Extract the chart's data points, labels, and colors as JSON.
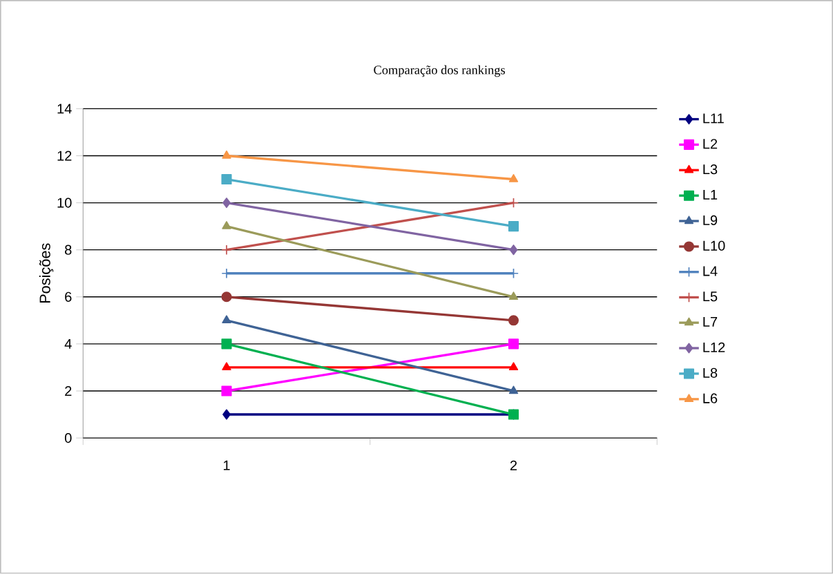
{
  "chart_data": {
    "type": "line",
    "title": "Comparação dos rankings",
    "ylabel": "Posições",
    "categories": [
      "1",
      "2"
    ],
    "ylim": [
      0,
      14
    ],
    "yticks": [
      0,
      2,
      4,
      6,
      8,
      10,
      12,
      14
    ],
    "grid": "y",
    "legend": "right",
    "series": [
      {
        "name": "L11",
        "color": "#000080",
        "marker": "diamond",
        "values": [
          1,
          1
        ]
      },
      {
        "name": "L2",
        "color": "#ff00ff",
        "marker": "square",
        "values": [
          2,
          4
        ]
      },
      {
        "name": "L3",
        "color": "#ff0000",
        "marker": "triangle",
        "values": [
          3,
          3
        ]
      },
      {
        "name": "L1",
        "color": "#00b050",
        "marker": "square",
        "values": [
          4,
          1
        ]
      },
      {
        "name": "L9",
        "color": "#3f6395",
        "marker": "triangle",
        "values": [
          5,
          2
        ]
      },
      {
        "name": "L10",
        "color": "#953735",
        "marker": "circle",
        "values": [
          6,
          5
        ]
      },
      {
        "name": "L4",
        "color": "#4f81bd",
        "marker": "cross",
        "values": [
          7,
          7
        ]
      },
      {
        "name": "L5",
        "color": "#c0504d",
        "marker": "cross",
        "values": [
          8,
          10
        ]
      },
      {
        "name": "L7",
        "color": "#9b9b5a",
        "marker": "triangle",
        "values": [
          9,
          6
        ]
      },
      {
        "name": "L12",
        "color": "#8064a2",
        "marker": "diamond",
        "values": [
          10,
          8
        ]
      },
      {
        "name": "L8",
        "color": "#4bacc6",
        "marker": "square",
        "values": [
          11,
          9
        ]
      },
      {
        "name": "L6",
        "color": "#f79646",
        "marker": "triangle",
        "values": [
          12,
          11
        ]
      }
    ]
  }
}
